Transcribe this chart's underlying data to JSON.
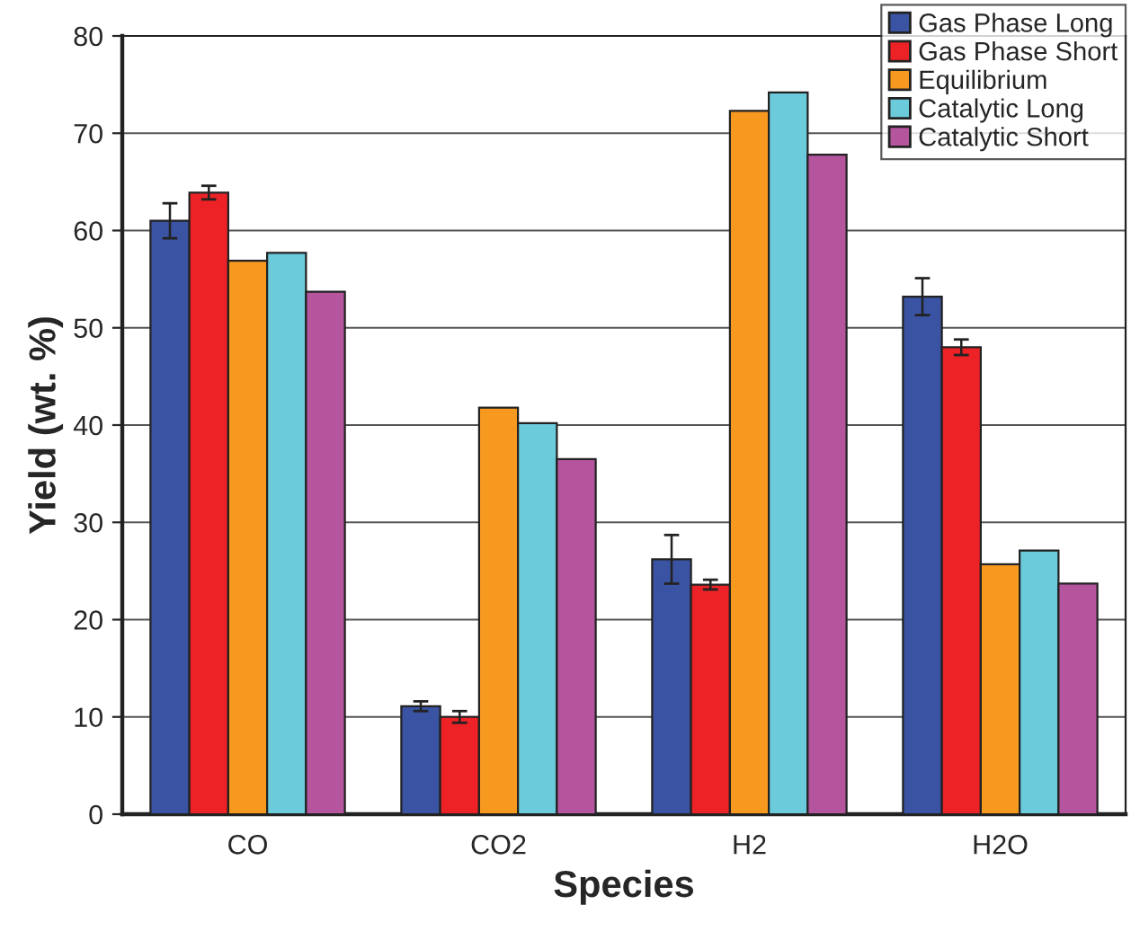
{
  "chart_data": {
    "type": "bar",
    "xlabel": "Species",
    "ylabel": "Yield (wt. %)",
    "categories": [
      "CO",
      "CO2",
      "H2",
      "H2O"
    ],
    "ylim": [
      0,
      80
    ],
    "yticks": [
      0,
      10,
      20,
      30,
      40,
      50,
      60,
      70,
      80
    ],
    "grid": "y",
    "legend": "top right",
    "series": [
      {
        "name": "Gas Phase Long",
        "color": "#3a54a3",
        "values": [
          61.0,
          11.1,
          26.2,
          53.2
        ],
        "errors": [
          1.8,
          0.5,
          2.5,
          1.9
        ]
      },
      {
        "name": "Gas Phase Short",
        "color": "#ec2227",
        "values": [
          63.9,
          10.0,
          23.6,
          48.0
        ],
        "errors": [
          0.7,
          0.6,
          0.5,
          0.8
        ]
      },
      {
        "name": "Equilibrium",
        "color": "#f7981f",
        "values": [
          56.9,
          41.8,
          72.3,
          25.7
        ]
      },
      {
        "name": "Catalytic Long",
        "color": "#6ccbdb",
        "values": [
          57.7,
          40.2,
          74.2,
          27.1
        ]
      },
      {
        "name": "Catalytic Short",
        "color": "#b5559e",
        "values": [
          53.7,
          36.5,
          67.8,
          23.7
        ]
      }
    ]
  }
}
